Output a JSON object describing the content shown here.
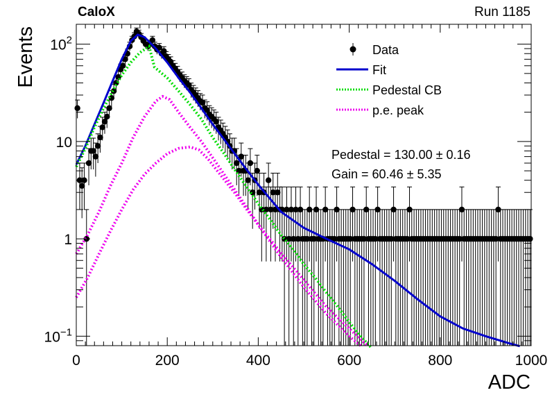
{
  "header": {
    "experiment": "CaloX",
    "run": "Run 1185"
  },
  "chart_data": {
    "type": "scatter",
    "title": "",
    "xlabel": "ADC",
    "ylabel": "Events",
    "xlim": [
      0,
      1000
    ],
    "ylim": [
      0.08,
      160
    ],
    "yscale": "log",
    "grid": false,
    "legend_position": "top-right",
    "x_ticks": [
      {
        "value": 0,
        "label": "0"
      },
      {
        "value": 200,
        "label": "200"
      },
      {
        "value": 400,
        "label": "400"
      },
      {
        "value": 600,
        "label": "600"
      },
      {
        "value": 800,
        "label": "800"
      },
      {
        "value": 1000,
        "label": "1000"
      }
    ],
    "y_ticks": [
      {
        "value": 0.1,
        "base": "10",
        "exp": "−1"
      },
      {
        "value": 1,
        "base": "1",
        "exp": ""
      },
      {
        "value": 10,
        "base": "10",
        "exp": ""
      },
      {
        "value": 100,
        "base": "10",
        "exp": "2"
      }
    ],
    "series": [
      {
        "name": "Data",
        "kind": "points-with-errors",
        "color": "#000000",
        "points": [
          [
            0,
            22
          ],
          [
            5,
            4
          ],
          [
            10,
            3.5
          ],
          [
            15,
            4
          ],
          [
            20,
            1
          ],
          [
            25,
            6
          ],
          [
            30,
            8
          ],
          [
            35,
            8
          ],
          [
            40,
            7
          ],
          [
            45,
            9
          ],
          [
            50,
            11
          ],
          [
            55,
            14
          ],
          [
            60,
            16
          ],
          [
            65,
            18
          ],
          [
            70,
            22
          ],
          [
            75,
            28
          ],
          [
            80,
            33
          ],
          [
            85,
            40
          ],
          [
            90,
            46
          ],
          [
            95,
            55
          ],
          [
            100,
            60
          ],
          [
            105,
            70
          ],
          [
            110,
            80
          ],
          [
            115,
            95
          ],
          [
            120,
            110
          ],
          [
            125,
            120
          ],
          [
            130,
            135
          ],
          [
            135,
            128
          ],
          [
            140,
            118
          ],
          [
            145,
            108
          ],
          [
            150,
            100
          ],
          [
            155,
            95
          ],
          [
            160,
            100
          ],
          [
            165,
            110
          ],
          [
            170,
            95
          ],
          [
            175,
            88
          ],
          [
            180,
            92
          ],
          [
            185,
            80
          ],
          [
            190,
            85
          ],
          [
            195,
            75
          ],
          [
            200,
            70
          ],
          [
            205,
            66
          ],
          [
            210,
            60
          ],
          [
            215,
            56
          ],
          [
            220,
            52
          ],
          [
            225,
            48
          ],
          [
            230,
            45
          ],
          [
            235,
            42
          ],
          [
            240,
            40
          ],
          [
            245,
            38
          ],
          [
            250,
            34
          ],
          [
            255,
            32
          ],
          [
            260,
            30
          ],
          [
            265,
            28
          ],
          [
            270,
            26
          ],
          [
            275,
            25
          ],
          [
            280,
            22
          ],
          [
            285,
            21
          ],
          [
            290,
            19
          ],
          [
            295,
            18
          ],
          [
            300,
            17
          ],
          [
            305,
            16
          ],
          [
            310,
            14
          ],
          [
            315,
            13
          ],
          [
            320,
            12
          ],
          [
            325,
            11
          ],
          [
            330,
            10
          ],
          [
            335,
            9
          ],
          [
            340,
            8
          ],
          [
            345,
            8
          ],
          [
            350,
            6
          ],
          [
            355,
            5
          ],
          [
            360,
            7
          ],
          [
            365,
            5
          ],
          [
            370,
            5
          ],
          [
            375,
            4
          ],
          [
            380,
            6
          ],
          [
            385,
            3
          ],
          [
            390,
            4
          ],
          [
            395,
            5
          ],
          [
            400,
            3
          ],
          [
            405,
            2
          ],
          [
            410,
            3
          ],
          [
            415,
            2
          ],
          [
            420,
            4
          ],
          [
            425,
            2
          ],
          [
            430,
            3
          ],
          [
            435,
            2
          ],
          [
            440,
            3
          ],
          [
            445,
            2
          ],
          [
            450,
            2
          ],
          [
            455,
            1
          ],
          [
            460,
            2
          ],
          [
            465,
            1
          ],
          [
            470,
            2
          ],
          [
            475,
            1
          ],
          [
            480,
            2
          ],
          [
            485,
            1
          ],
          [
            490,
            2
          ],
          [
            495,
            1
          ],
          [
            500,
            1
          ],
          [
            505,
            1
          ],
          [
            510,
            2
          ],
          [
            515,
            1
          ],
          [
            520,
            1
          ],
          [
            525,
            2
          ],
          [
            530,
            1
          ],
          [
            535,
            1
          ],
          [
            540,
            1
          ],
          [
            545,
            2
          ],
          [
            550,
            1
          ],
          [
            555,
            1
          ],
          [
            560,
            1
          ],
          [
            565,
            1
          ],
          [
            570,
            2
          ],
          [
            575,
            1
          ],
          [
            580,
            1
          ],
          [
            585,
            1
          ],
          [
            590,
            1
          ],
          [
            595,
            1
          ],
          [
            600,
            1
          ],
          [
            605,
            2
          ],
          [
            610,
            1
          ],
          [
            615,
            1
          ],
          [
            620,
            1
          ],
          [
            625,
            1
          ],
          [
            630,
            1
          ],
          [
            635,
            2
          ],
          [
            640,
            1
          ],
          [
            645,
            1
          ],
          [
            650,
            1
          ],
          [
            655,
            1
          ],
          [
            660,
            2
          ],
          [
            665,
            1
          ],
          [
            670,
            1
          ],
          [
            675,
            1
          ],
          [
            680,
            1
          ],
          [
            685,
            1
          ],
          [
            690,
            1
          ],
          [
            695,
            2
          ],
          [
            700,
            1
          ],
          [
            705,
            1
          ],
          [
            710,
            1
          ],
          [
            715,
            1
          ],
          [
            720,
            1
          ],
          [
            725,
            1
          ],
          [
            730,
            2
          ],
          [
            735,
            1
          ],
          [
            740,
            1
          ],
          [
            745,
            1
          ],
          [
            750,
            1
          ],
          [
            755,
            1
          ],
          [
            760,
            1
          ],
          [
            765,
            1
          ],
          [
            770,
            1
          ],
          [
            775,
            1
          ],
          [
            780,
            1
          ],
          [
            785,
            1
          ],
          [
            790,
            1
          ],
          [
            795,
            1
          ],
          [
            800,
            1
          ],
          [
            805,
            1
          ],
          [
            810,
            1
          ],
          [
            815,
            1
          ],
          [
            820,
            1
          ],
          [
            825,
            1
          ],
          [
            830,
            1
          ],
          [
            835,
            1
          ],
          [
            840,
            1
          ],
          [
            845,
            2
          ],
          [
            850,
            1
          ],
          [
            855,
            1
          ],
          [
            860,
            1
          ],
          [
            865,
            1
          ],
          [
            870,
            1
          ],
          [
            875,
            1
          ],
          [
            880,
            1
          ],
          [
            885,
            1
          ],
          [
            890,
            1
          ],
          [
            895,
            1
          ],
          [
            900,
            1
          ],
          [
            905,
            1
          ],
          [
            910,
            1
          ],
          [
            915,
            1
          ],
          [
            920,
            1
          ],
          [
            925,
            2
          ],
          [
            930,
            1
          ],
          [
            935,
            1
          ],
          [
            940,
            1
          ],
          [
            945,
            1
          ],
          [
            950,
            1
          ],
          [
            955,
            1
          ],
          [
            960,
            1
          ],
          [
            965,
            1
          ],
          [
            970,
            1
          ],
          [
            975,
            1
          ],
          [
            980,
            1
          ],
          [
            985,
            1
          ],
          [
            990,
            1
          ],
          [
            995,
            1
          ]
        ]
      },
      {
        "name": "Fit",
        "kind": "line",
        "color": "#0000cc",
        "points": [
          [
            0,
            5.8
          ],
          [
            20,
            9
          ],
          [
            40,
            15
          ],
          [
            60,
            25
          ],
          [
            80,
            42
          ],
          [
            100,
            70
          ],
          [
            120,
            108
          ],
          [
            135,
            125
          ],
          [
            150,
            118
          ],
          [
            175,
            90
          ],
          [
            200,
            65
          ],
          [
            225,
            45
          ],
          [
            250,
            32
          ],
          [
            275,
            22
          ],
          [
            300,
            15
          ],
          [
            325,
            10.5
          ],
          [
            350,
            7.3
          ],
          [
            375,
            5.1
          ],
          [
            400,
            3.6
          ],
          [
            450,
            1.9
          ],
          [
            500,
            1.3
          ],
          [
            550,
            1.0
          ],
          [
            600,
            0.78
          ],
          [
            650,
            0.55
          ],
          [
            700,
            0.37
          ],
          [
            750,
            0.24
          ],
          [
            800,
            0.16
          ],
          [
            850,
            0.12
          ],
          [
            900,
            0.1
          ],
          [
            950,
            0.085
          ],
          [
            975,
            0.079
          ]
        ]
      },
      {
        "name": "Pedestal CB",
        "kind": "dotted",
        "color": "#00dd00",
        "points": [
          [
            0,
            5.5
          ],
          [
            20,
            8.5
          ],
          [
            40,
            14
          ],
          [
            60,
            22
          ],
          [
            80,
            33
          ],
          [
            100,
            48
          ],
          [
            120,
            65
          ],
          [
            140,
            82
          ],
          [
            160,
            95
          ],
          [
            172,
            58
          ],
          [
            200,
            45
          ],
          [
            225,
            33
          ],
          [
            250,
            24
          ],
          [
            275,
            17
          ],
          [
            300,
            11
          ],
          [
            325,
            7.5
          ],
          [
            350,
            5
          ],
          [
            375,
            3.4
          ],
          [
            400,
            2.3
          ],
          [
            425,
            1.6
          ],
          [
            450,
            1.1
          ],
          [
            475,
            0.8
          ],
          [
            500,
            0.55
          ],
          [
            525,
            0.4
          ],
          [
            550,
            0.28
          ],
          [
            575,
            0.2
          ],
          [
            600,
            0.14
          ],
          [
            625,
            0.1
          ],
          [
            650,
            0.075
          ]
        ]
      },
      {
        "name": "p.e. peak",
        "kind": "dotted",
        "color": "#ee00ee",
        "points": [
          [
            0,
            0.7
          ],
          [
            25,
            1.1
          ],
          [
            50,
            1.9
          ],
          [
            75,
            3.5
          ],
          [
            100,
            6
          ],
          [
            125,
            11
          ],
          [
            150,
            18
          ],
          [
            175,
            26
          ],
          [
            190,
            29
          ],
          [
            205,
            27
          ],
          [
            225,
            20
          ],
          [
            250,
            14
          ],
          [
            275,
            10
          ],
          [
            300,
            6.8
          ],
          [
            325,
            4.6
          ],
          [
            350,
            3.1
          ],
          [
            375,
            2.1
          ],
          [
            400,
            1.4
          ],
          [
            450,
            0.65
          ],
          [
            500,
            0.32
          ],
          [
            550,
            0.17
          ],
          [
            600,
            0.1
          ],
          [
            625,
            0.08
          ]
        ]
      },
      {
        "name": "p.e. peak",
        "kind": "dotted",
        "color": "#ee00ee",
        "points": [
          [
            0,
            0.25
          ],
          [
            25,
            0.4
          ],
          [
            50,
            0.7
          ],
          [
            75,
            1.2
          ],
          [
            100,
            2
          ],
          [
            125,
            3.2
          ],
          [
            150,
            4.6
          ],
          [
            175,
            6
          ],
          [
            200,
            7.5
          ],
          [
            225,
            8.5
          ],
          [
            250,
            8.8
          ],
          [
            270,
            8.2
          ],
          [
            290,
            6.6
          ],
          [
            310,
            5
          ],
          [
            330,
            3.8
          ],
          [
            350,
            2.9
          ],
          [
            375,
            2
          ],
          [
            400,
            1.4
          ],
          [
            450,
            0.72
          ],
          [
            500,
            0.38
          ],
          [
            550,
            0.2
          ],
          [
            600,
            0.12
          ],
          [
            640,
            0.08
          ]
        ]
      }
    ],
    "legend": [
      {
        "label": "Data",
        "kind": "marker",
        "color": "#000000"
      },
      {
        "label": "Fit",
        "kind": "line",
        "color": "#0000cc"
      },
      {
        "label": "Pedestal CB",
        "kind": "dotted",
        "color": "#00dd00"
      },
      {
        "label": "p.e. peak",
        "kind": "dotted",
        "color": "#ee00ee"
      }
    ],
    "annotations": [
      {
        "text": "Pedestal = 130.00 ± 0.16"
      },
      {
        "text": "Gain = 60.46 ± 5.35"
      }
    ]
  }
}
